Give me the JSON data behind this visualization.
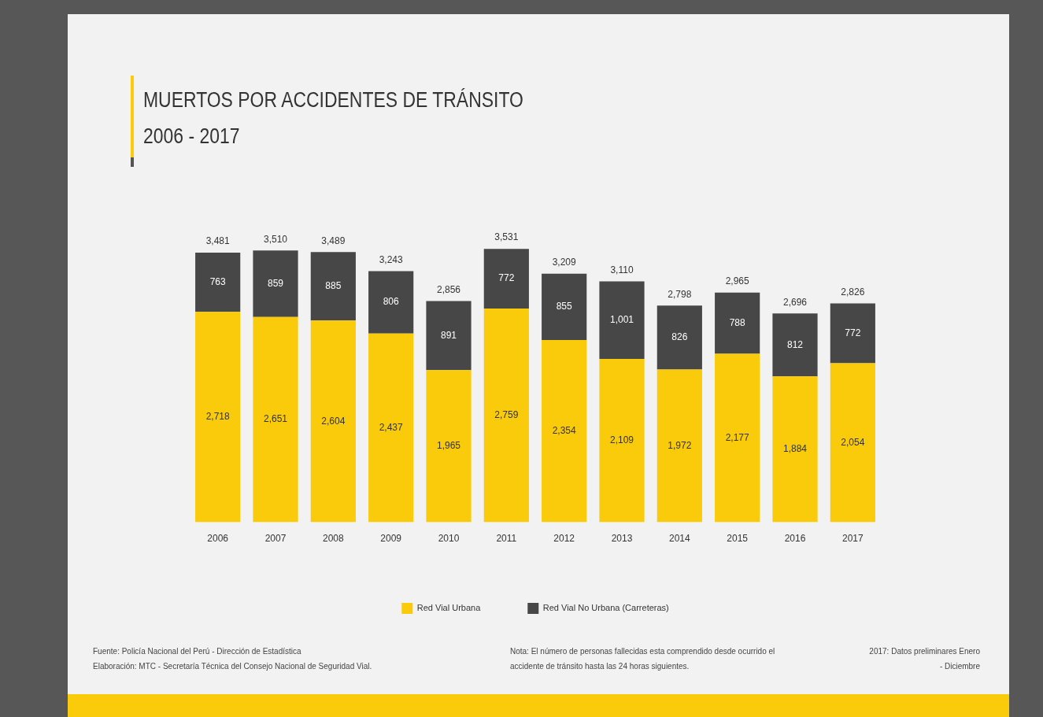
{
  "chart_data": {
    "type": "bar",
    "title": "MUERTOS POR ACCIDENTES DE TRÁNSITO",
    "subtitle": "2006 - 2017",
    "categories": [
      "2006",
      "2007",
      "2008",
      "2009",
      "2010",
      "2011",
      "2012",
      "2013",
      "2014",
      "2015",
      "2016",
      "2017"
    ],
    "stacked": true,
    "series": [
      {
        "name": "Red Vial Urbana",
        "color": "#f9cb0b",
        "values": [
          2718,
          2651,
          2604,
          2437,
          1965,
          2759,
          2354,
          2109,
          1972,
          2177,
          1884,
          2054
        ],
        "value_labels": [
          "2,718",
          "2,651",
          "2,604",
          "2,437",
          "1,965",
          "2,759",
          "2,354",
          "2,109",
          "1,972",
          "2,177",
          "1,884",
          "2,054"
        ]
      },
      {
        "name": "Red Vial No Urbana (Carreteras)",
        "color": "#474747",
        "values": [
          763,
          859,
          885,
          806,
          891,
          772,
          855,
          1001,
          826,
          788,
          812,
          772
        ],
        "value_labels": [
          "763",
          "859",
          "885",
          "806",
          "891",
          "772",
          "855",
          "1,001",
          "826",
          "788",
          "812",
          "772"
        ]
      }
    ],
    "totals": [
      "3,481",
      "3,510",
      "3,489",
      "3,243",
      "2,856",
      "3,531",
      "3,209",
      "3,110",
      "2,798",
      "2,965",
      "2,696",
      "2,826"
    ],
    "legend": "bottom",
    "grid": false,
    "tick_labels": "x",
    "annotations": [
      "Fuente: Policía Nacional del Perú - Dirección de Estadística",
      "Elaboración: MTC - Secretaría Técnica del Consejo Nacional de Seguridad Vial.",
      "Nota: El número de personas fallecidas esta comprendido desde ocurrido el accidente de tránsito hasta las 24 horas siguientes.",
      "2017: Datos preliminares Enero - Diciembre"
    ]
  }
}
